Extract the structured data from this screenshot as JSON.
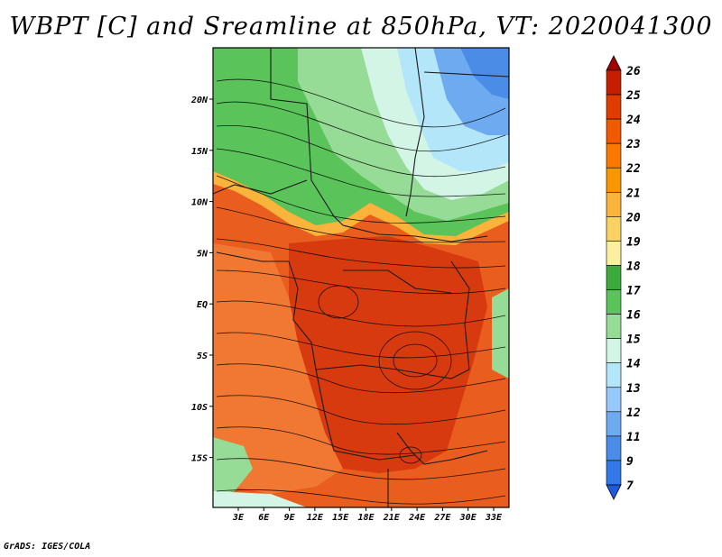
{
  "title": "WBPT [C] and Sreamline at 850hPa, VT: 2020041300",
  "footer": "GrADS: IGES/COLA",
  "lon_labels": [
    "3E",
    "6E",
    "9E",
    "12E",
    "15E",
    "18E",
    "21E",
    "24E",
    "27E",
    "30E",
    "33E"
  ],
  "lat_labels": [
    "20N",
    "15N",
    "10N",
    "5N",
    "EQ",
    "5S",
    "10S",
    "15S"
  ],
  "colorbar": {
    "labels": [
      "26",
      "25",
      "24",
      "23",
      "22",
      "21",
      "20",
      "19",
      "18",
      "17",
      "16",
      "15",
      "14",
      "13",
      "12",
      "11",
      "9",
      "7"
    ],
    "colors": [
      "#a00000",
      "#c81e00",
      "#e03c00",
      "#f05a00",
      "#fa7800",
      "#fa9600",
      "#fab43c",
      "#fad264",
      "#faf0a0",
      "#3caa3c",
      "#5ac35a",
      "#96dc96",
      "#d2f5e6",
      "#b4e6fa",
      "#96c8fa",
      "#6eaaf0",
      "#4b8ce6",
      "#3278e6",
      "#1e5adc"
    ]
  },
  "map_colors": {
    "hot": "#d83a10",
    "warm": "#e95d1e",
    "orange": "#f58232",
    "green": "#5ac35a",
    "light_green": "#96dc96",
    "pale": "#d2f5e6",
    "blue": "#6eaaf0",
    "deep_blue": "#4b8ce6"
  }
}
